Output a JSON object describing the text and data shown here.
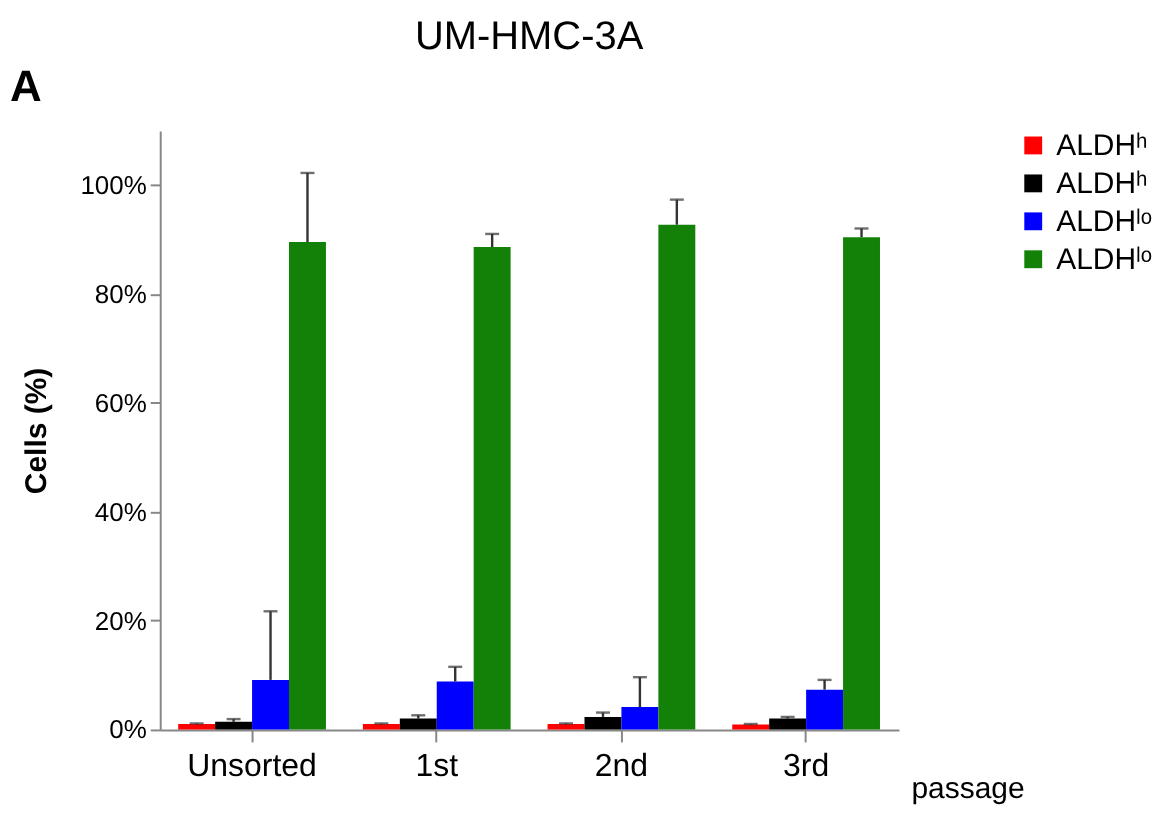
{
  "chart_data": {
    "type": "bar",
    "title": "UM-HMC-3A",
    "ylabel": "Cells (%)",
    "xlabel": "passage",
    "annotations": [
      "A"
    ],
    "categories": [
      "Unsorted",
      "1st",
      "2nd",
      "3rd"
    ],
    "series": [
      {
        "name": "ALDHʰ",
        "color": "#ff0000",
        "values": [
          1.0,
          1.0,
          1.0,
          0.9
        ],
        "errors": [
          0.1,
          0.1,
          0.1,
          0.1
        ]
      },
      {
        "name": "ALDHʰ",
        "color": "#000000",
        "values": [
          1.4,
          2.0,
          2.3,
          2.0
        ],
        "errors": [
          0.5,
          0.6,
          0.8,
          0.3
        ]
      },
      {
        "name": "ALDHˡᵒ",
        "color": "#0000ff",
        "values": [
          9.1,
          8.8,
          4.1,
          7.3
        ],
        "errors": [
          12.6,
          2.7,
          5.5,
          1.8
        ]
      },
      {
        "name": "ALDHˡᵒ",
        "color": "#138008",
        "values": [
          89.5,
          88.6,
          92.7,
          90.4
        ],
        "errors": [
          12.7,
          2.4,
          4.6,
          1.6
        ]
      }
    ],
    "ylim": [
      0,
      110
    ],
    "yticks": [
      {
        "value": 0,
        "label": "0%"
      },
      {
        "value": 20,
        "label": "20%"
      },
      {
        "value": 40,
        "label": "40%"
      },
      {
        "value": 60,
        "label": "60%"
      },
      {
        "value": 80,
        "label": "80%"
      },
      {
        "value": 100,
        "label": "100%"
      }
    ],
    "grid": false,
    "legend": "right"
  }
}
